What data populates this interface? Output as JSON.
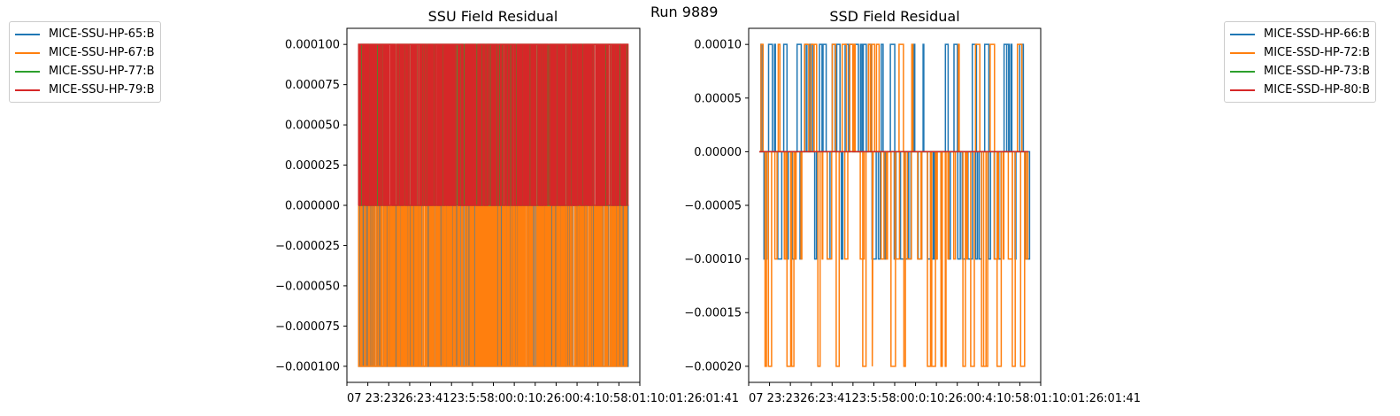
{
  "suptitle": "Run 9889",
  "colors": {
    "blue": "#1f77b4",
    "orange": "#ff7f0e",
    "green": "#2ca02c",
    "red": "#d62728"
  },
  "chart_data": [
    {
      "type": "line",
      "title": "SSU Field Residual",
      "xlabel": "",
      "ylabel": "",
      "ylim": [
        -0.00011,
        0.00011
      ],
      "yticks": [
        {
          "value": 0.0001,
          "label": "0.000100"
        },
        {
          "value": 7.5e-05,
          "label": "0.000075"
        },
        {
          "value": 5e-05,
          "label": "0.000050"
        },
        {
          "value": 2.5e-05,
          "label": "0.000025"
        },
        {
          "value": 0.0,
          "label": "0.000000"
        },
        {
          "value": -2.5e-05,
          "label": "−0.000025"
        },
        {
          "value": -5e-05,
          "label": "−0.000050"
        },
        {
          "value": -7.5e-05,
          "label": "−0.000075"
        },
        {
          "value": -0.0001,
          "label": "−0.000100"
        }
      ],
      "xtick_text": "07 23:2326:23:4123:5:58:00:0:10:26:00:4:10:58:01:10:01:26:01:41",
      "grid": false,
      "legend_position": "outside-left",
      "series": [
        {
          "name": "MICE-SSU-HP-65:B",
          "color": "#1f77b4",
          "values": [
            0,
            -0.0001,
            0,
            -0.0001,
            0,
            -0.0001,
            0,
            -0.0001,
            0,
            -0.0001,
            0,
            -0.0001,
            0
          ]
        },
        {
          "name": "MICE-SSU-HP-67:B",
          "color": "#ff7f0e",
          "values": [
            0,
            -0.0001,
            0,
            -0.0001,
            0,
            -0.0001,
            0,
            -0.0001,
            0
          ]
        },
        {
          "name": "MICE-SSU-HP-77:B",
          "color": "#2ca02c",
          "values": [
            0,
            0.0001,
            0,
            0.0001,
            0,
            0.0001,
            0
          ]
        },
        {
          "name": "MICE-SSU-HP-79:B",
          "color": "#d62728",
          "values": [
            0,
            0.0001,
            0,
            0.0001,
            0,
            0.0001,
            0,
            0.0001,
            0
          ]
        }
      ]
    },
    {
      "type": "line",
      "title": "SSD Field Residual",
      "xlabel": "",
      "ylabel": "",
      "ylim": [
        -0.000215,
        0.000115
      ],
      "yticks": [
        {
          "value": 0.0001,
          "label": "0.00010"
        },
        {
          "value": 5e-05,
          "label": "0.00005"
        },
        {
          "value": 0.0,
          "label": "0.00000"
        },
        {
          "value": -5e-05,
          "label": "−0.00005"
        },
        {
          "value": -0.0001,
          "label": "−0.00010"
        },
        {
          "value": -0.00015,
          "label": "−0.00015"
        },
        {
          "value": -0.0002,
          "label": "−0.00020"
        }
      ],
      "xtick_text": "07 23:2326:23:4123:5:58:00:0:10:26:00:4:10:58:01:10:01:26:01:41",
      "grid": false,
      "legend_position": "outside-right",
      "series": [
        {
          "name": "MICE-SSD-HP-66:B",
          "color": "#1f77b4",
          "values": [
            0,
            -0.0001,
            0,
            0.0001,
            0,
            -0.0001,
            0,
            0.0001,
            0,
            -0.0001,
            0
          ]
        },
        {
          "name": "MICE-SSD-HP-72:B",
          "color": "#ff7f0e",
          "values": [
            0,
            -0.0001,
            0,
            0.0001,
            0,
            -0.0002,
            0,
            -0.0001,
            0,
            0.0001,
            0
          ]
        },
        {
          "name": "MICE-SSD-HP-73:B",
          "color": "#2ca02c",
          "values": [
            0,
            0,
            0
          ]
        },
        {
          "name": "MICE-SSD-HP-80:B",
          "color": "#d62728",
          "values": [
            0,
            0,
            0
          ]
        }
      ]
    }
  ]
}
